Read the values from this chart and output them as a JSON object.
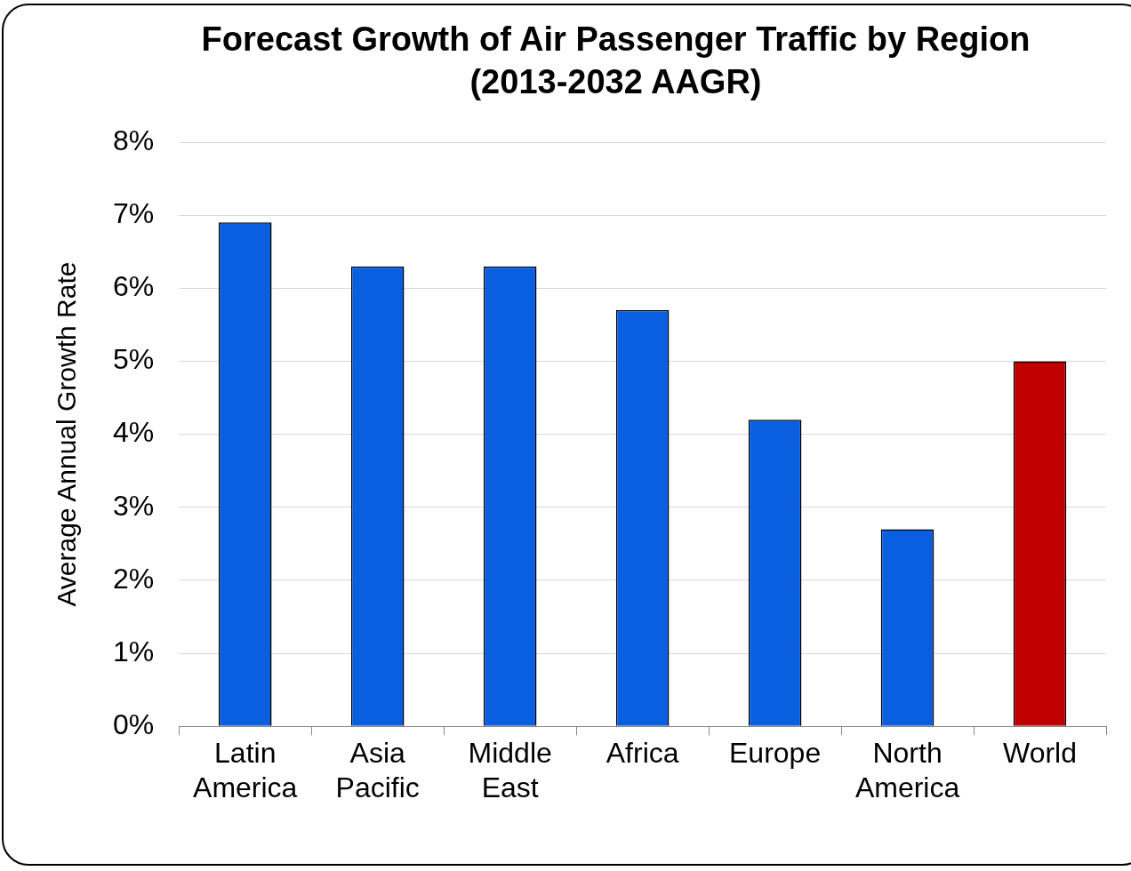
{
  "chart_data": {
    "type": "bar",
    "title": "Forecast Growth of Air Passenger Traffic by Region",
    "subtitle": "(2013-2032 AAGR)",
    "ylabel": "Average Annual Growth Rate",
    "categories": [
      "Latin America",
      "Asia Pacific",
      "Middle East",
      "Africa",
      "Europe",
      "North America",
      "World"
    ],
    "values": [
      6.9,
      6.3,
      6.3,
      5.7,
      4.2,
      2.7,
      5.0
    ],
    "colors": [
      "#0a5ee0",
      "#0a5ee0",
      "#0a5ee0",
      "#0a5ee0",
      "#0a5ee0",
      "#0a5ee0",
      "#c00000"
    ],
    "ylim": [
      0,
      8
    ],
    "yticks": [
      {
        "value": 0,
        "label": "0%"
      },
      {
        "value": 1,
        "label": "1%"
      },
      {
        "value": 2,
        "label": "2%"
      },
      {
        "value": 3,
        "label": "3%"
      },
      {
        "value": 4,
        "label": "4%"
      },
      {
        "value": 5,
        "label": "5%"
      },
      {
        "value": 6,
        "label": "6%"
      },
      {
        "value": 7,
        "label": "7%"
      },
      {
        "value": 8,
        "label": "8%"
      }
    ],
    "grid": "y",
    "legend": false
  }
}
